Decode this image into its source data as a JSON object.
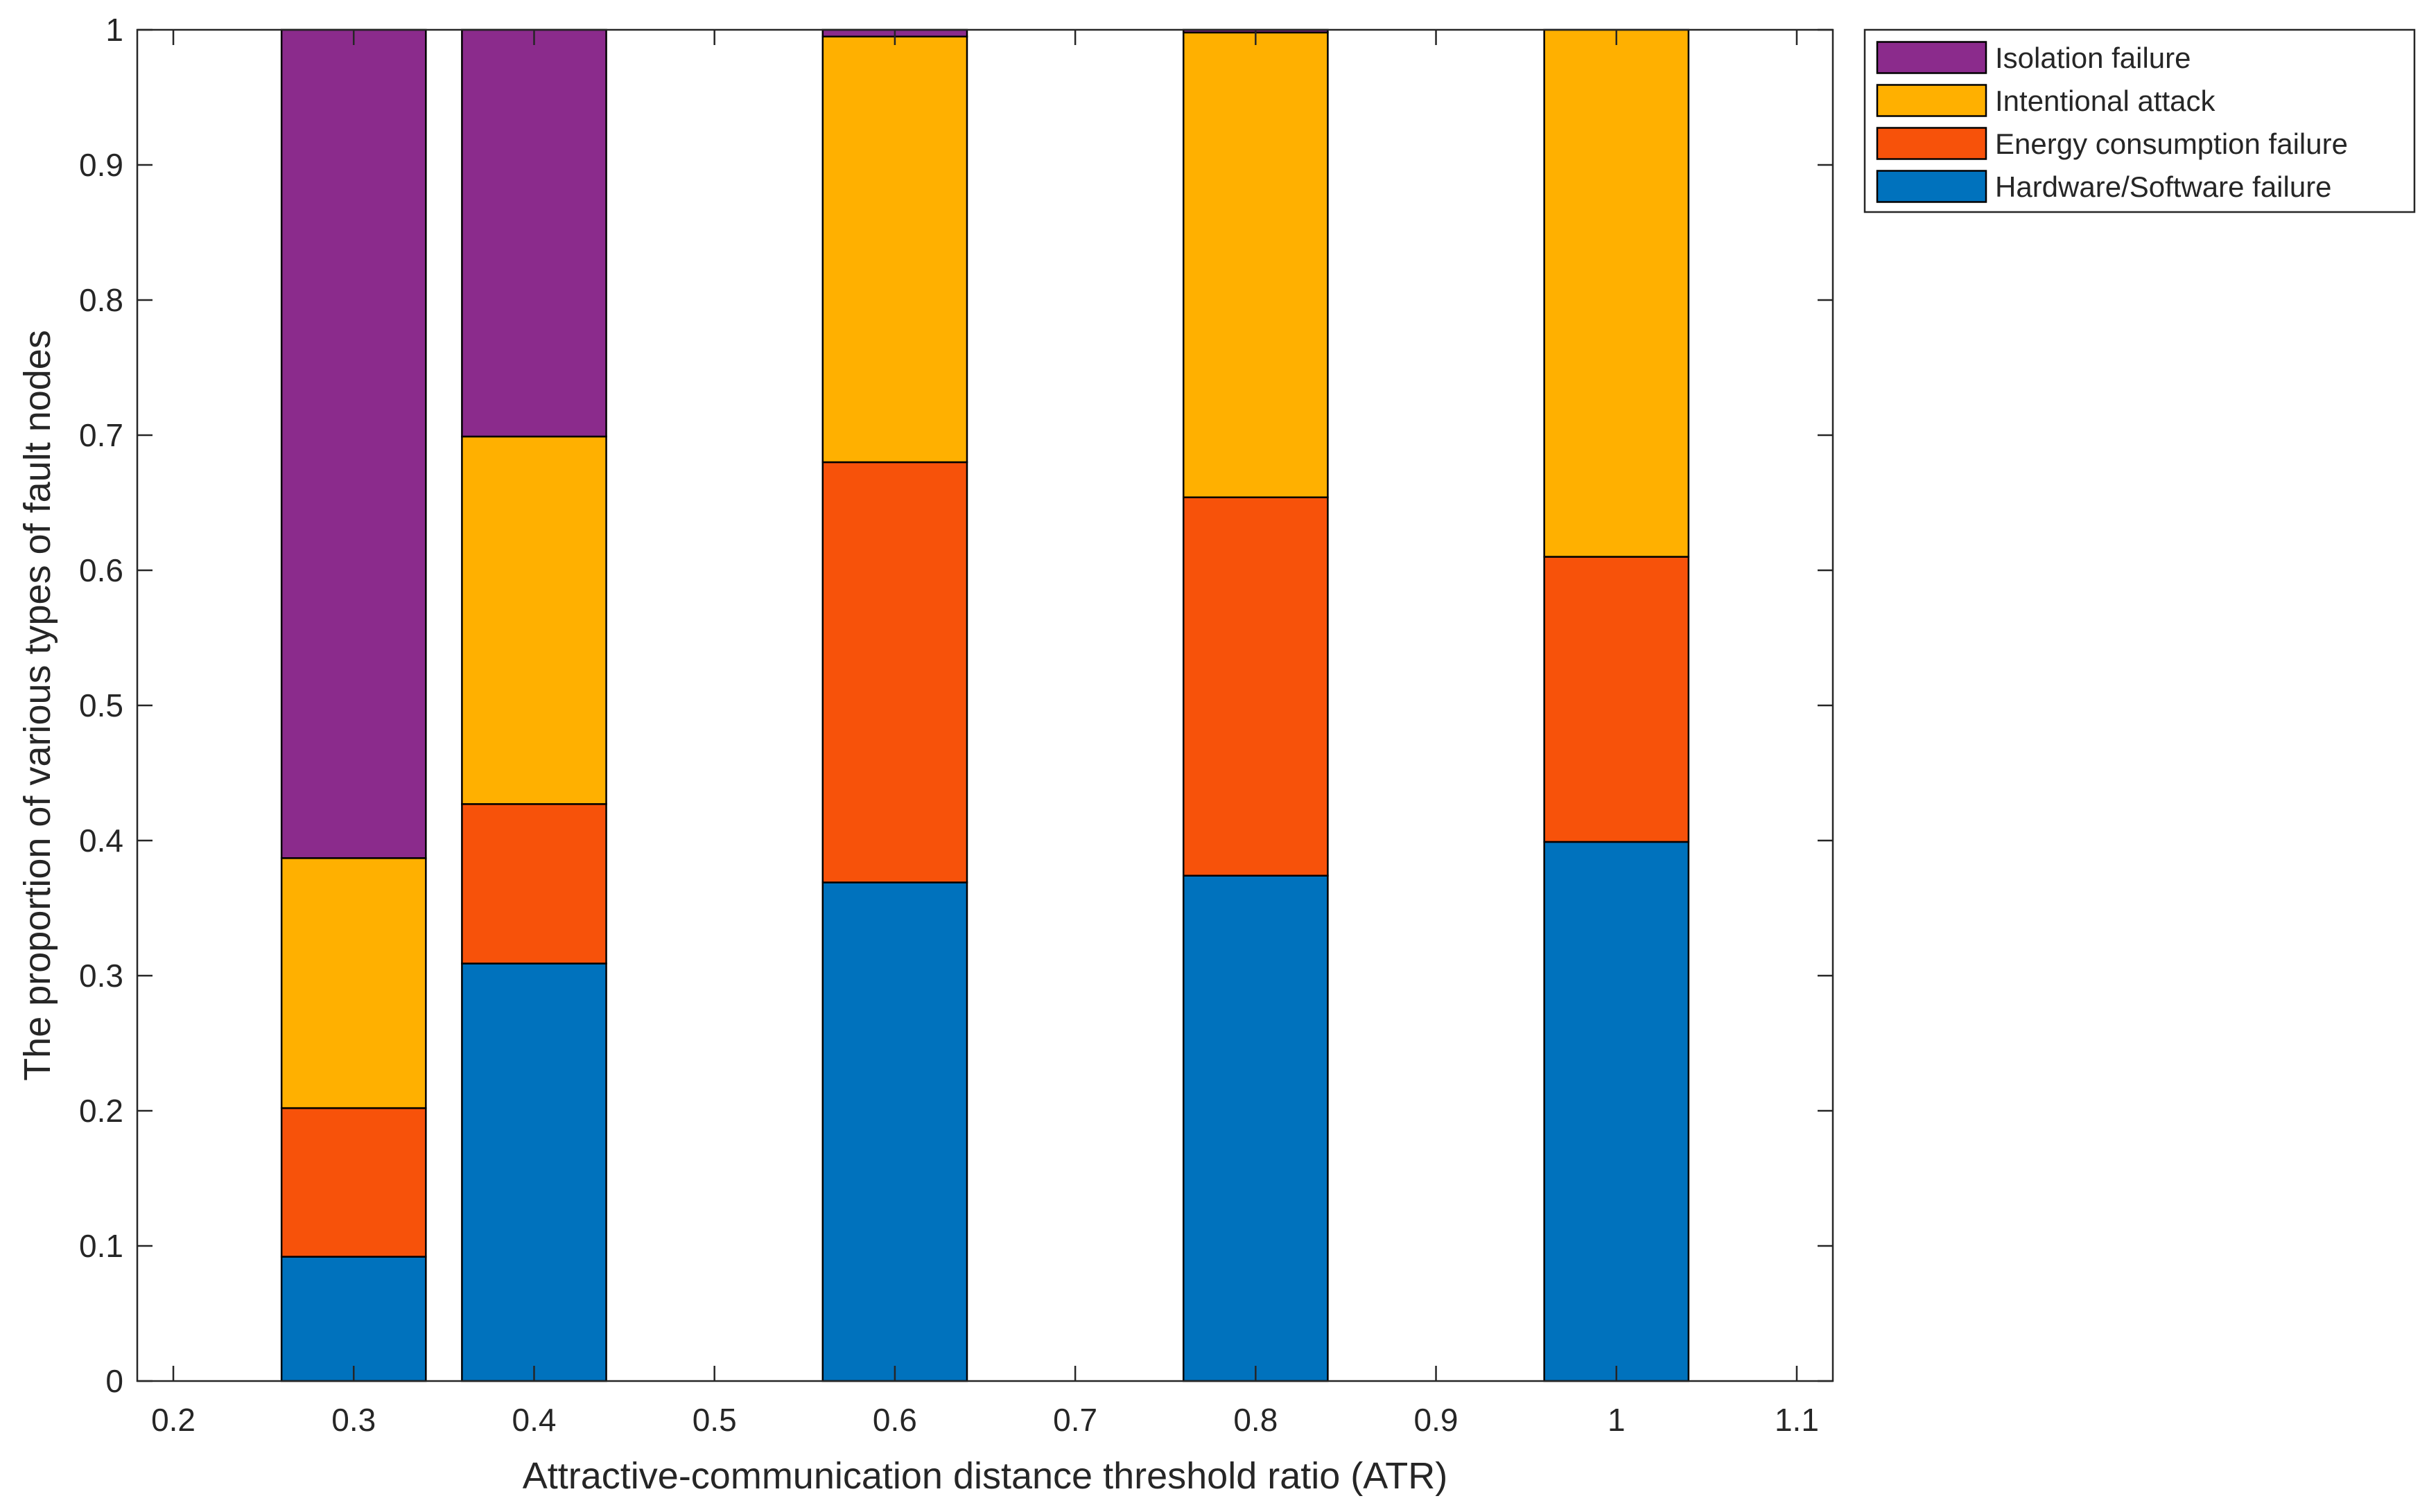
{
  "chart_data": {
    "type": "bar",
    "stacked": true,
    "title": "",
    "xlabel": "Attractive-communication distance threshold ratio (ATR)",
    "ylabel": "The proportion of various types of fault nodes",
    "xlim": [
      0.18,
      1.12
    ],
    "ylim": [
      0,
      1
    ],
    "bar_width": 0.08,
    "x": [
      0.3,
      0.4,
      0.6,
      0.8,
      1.0
    ],
    "x_ticks": [
      0.2,
      0.3,
      0.4,
      0.5,
      0.6,
      0.7,
      0.8,
      0.9,
      1.0,
      1.1
    ],
    "x_tick_labels": [
      "0.2",
      "0.3",
      "0.4",
      "0.5",
      "0.6",
      "0.7",
      "0.8",
      "0.9",
      "1",
      "1.1"
    ],
    "y_ticks": [
      0,
      0.1,
      0.2,
      0.3,
      0.4,
      0.5,
      0.6,
      0.7,
      0.8,
      0.9,
      1.0
    ],
    "y_tick_labels": [
      "0",
      "0.1",
      "0.2",
      "0.3",
      "0.4",
      "0.5",
      "0.6",
      "0.7",
      "0.8",
      "0.9",
      "1"
    ],
    "grid": false,
    "legend_position": "outside-top-right",
    "series": [
      {
        "name": "Hardware/Software failure",
        "color": "#0072BD",
        "values": [
          0.092,
          0.309,
          0.369,
          0.374,
          0.399
        ]
      },
      {
        "name": "Energy consumption failure",
        "color": "#F7520A",
        "values": [
          0.11,
          0.118,
          0.311,
          0.28,
          0.211
        ]
      },
      {
        "name": "Intentional attack",
        "color": "#FFB000",
        "values": [
          0.185,
          0.272,
          0.315,
          0.344,
          0.39
        ]
      },
      {
        "name": "Isolation failure",
        "color": "#8B2B8C",
        "values": [
          0.613,
          0.301,
          0.005,
          0.002,
          0.0
        ]
      }
    ],
    "legend_order": [
      "Isolation failure",
      "Intentional attack",
      "Energy consumption failure",
      "Hardware/Software failure"
    ]
  }
}
